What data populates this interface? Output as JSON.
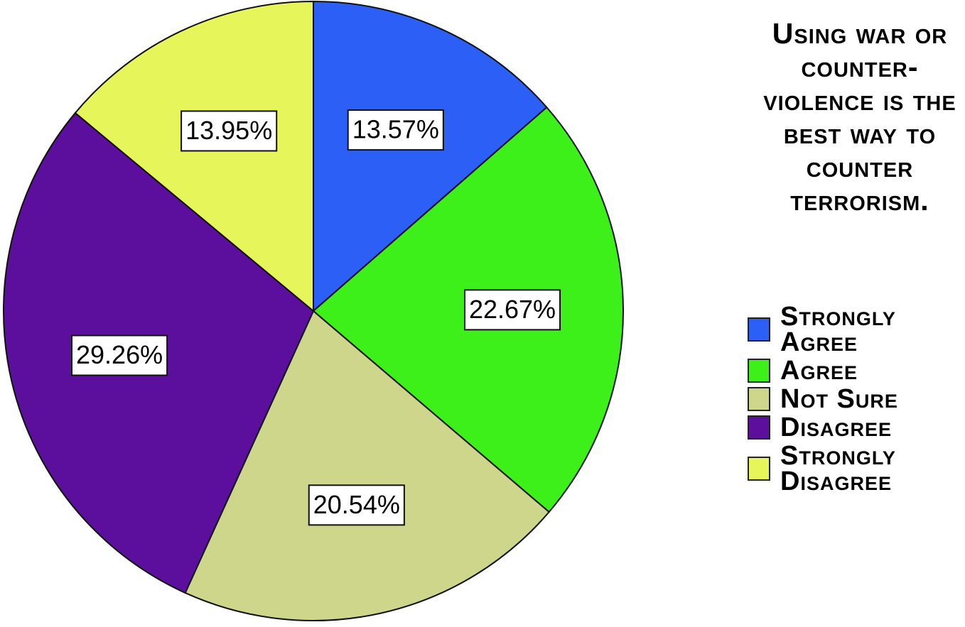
{
  "chart_data": {
    "type": "pie",
    "legend_title": "Using war or counter-violence is the best way to counter terrorism.",
    "categories": [
      "Strongly Agree",
      "Agree",
      "Not Sure",
      "Disagree",
      "Strongly Disagree"
    ],
    "values": [
      13.57,
      22.67,
      20.54,
      29.26,
      13.95
    ],
    "value_labels": [
      "13.57%",
      "22.67%",
      "20.54%",
      "29.26%",
      "13.95%"
    ],
    "colors": [
      "#2b5ff5",
      "#3ef01a",
      "#cdd68a",
      "#5b0f9c",
      "#e6f55a"
    ],
    "legend": "right"
  }
}
